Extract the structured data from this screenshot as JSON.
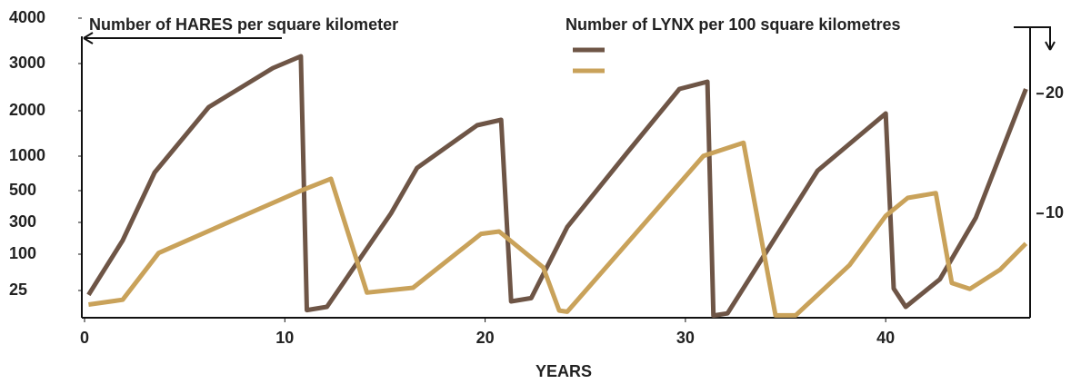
{
  "chart_data": {
    "type": "line",
    "y_label": "Number of HARES per square kilometer",
    "y2_label": "Number of LYNX per 100 square kilometres",
    "x_label": "YEARS",
    "xlim": [
      0,
      47.3
    ],
    "xticks": [
      0,
      10,
      20,
      30,
      40
    ],
    "ylim": [
      0,
      4000
    ],
    "yticks": [
      25,
      100,
      300,
      500,
      1000,
      2000,
      3000,
      4000
    ],
    "y2lim": [
      1.3,
      26.3
    ],
    "y2ticks": [
      10,
      20
    ],
    "series": [
      {
        "color": "#6e5546",
        "axis": "y",
        "x": [
          0.2,
          1.9,
          3.5,
          6.2,
          9.4,
          10.8,
          11.1,
          12.1,
          15.3,
          16.6,
          19.6,
          20.8,
          21.3,
          22.3,
          24.1,
          27.1,
          29.7,
          31.1,
          31.4,
          32.1,
          36.6,
          40.0,
          40.4,
          41.0,
          42.7,
          44.5,
          47.0
        ],
        "values": [
          21,
          186,
          763,
          2077,
          2904,
          3160,
          7,
          10,
          357,
          829,
          1680,
          1800,
          15,
          18,
          271,
          1080,
          2462,
          2615,
          2,
          4,
          789,
          1940,
          29,
          10,
          48,
          329,
          2462
        ]
      },
      {
        "color": "#c9a25a",
        "axis": "y2",
        "x": [
          0.2,
          1.9,
          3.7,
          7.1,
          10.8,
          11.4,
          12.3,
          14.1,
          16.4,
          19.8,
          20.7,
          22.9,
          23.7,
          24.1,
          27.5,
          30.9,
          32.9,
          34.5,
          35.5,
          38.2,
          40.0,
          41.1,
          42.5,
          43.3,
          44.2,
          45.7,
          47.0
        ],
        "values": [
          2.4,
          2.8,
          6.7,
          9.2,
          11.9,
          12.3,
          12.9,
          3.4,
          3.8,
          8.3,
          8.5,
          5.5,
          1.9,
          1.8,
          8.3,
          14.8,
          15.9,
          1.5,
          1.5,
          5.7,
          9.8,
          11.3,
          11.7,
          4.2,
          3.7,
          5.3,
          7.5
        ]
      }
    ]
  }
}
